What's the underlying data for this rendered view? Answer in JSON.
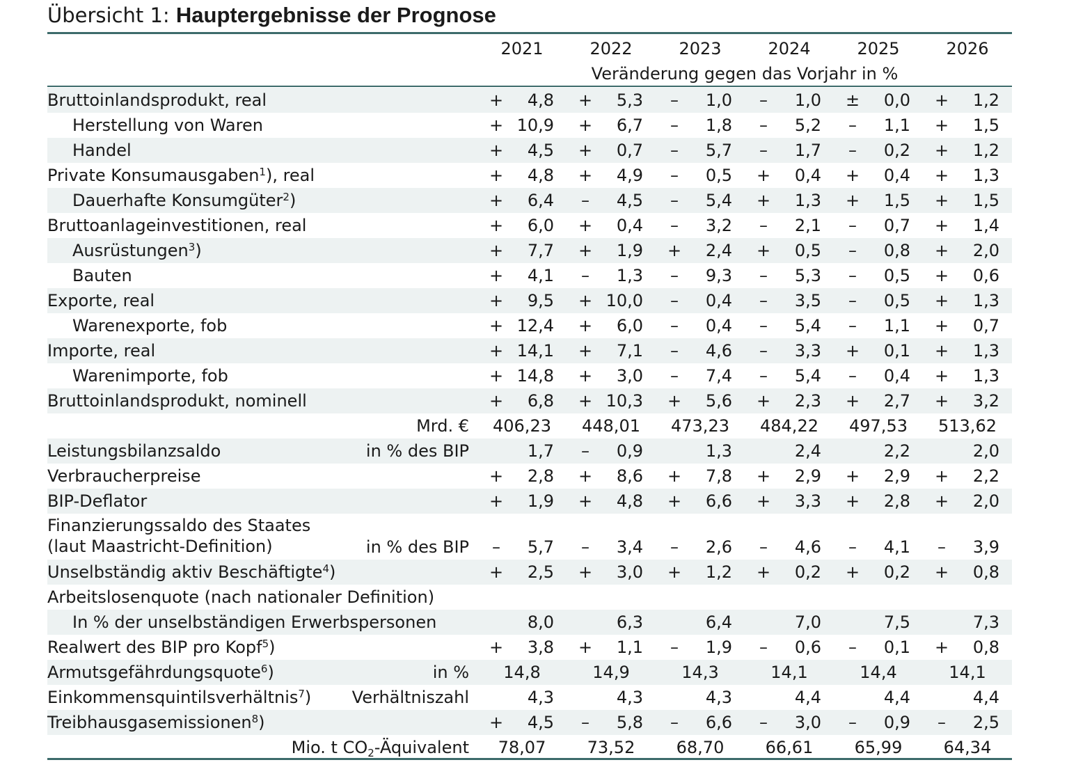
{
  "title": {
    "prefix": "Übersicht 1: ",
    "main": "Hauptergebnisse der Prognose"
  },
  "header": {
    "years": [
      "2021",
      "2022",
      "2023",
      "2024",
      "2025",
      "2026"
    ],
    "subheader": "Veränderung gegen das Vorjahr in %"
  },
  "rows": [
    {
      "label": "Bruttoinlandsprodukt, real",
      "indent": false,
      "shade": true,
      "cells": [
        [
          "+",
          "4,8"
        ],
        [
          "+",
          "5,3"
        ],
        [
          "–",
          "1,0"
        ],
        [
          "–",
          "1,0"
        ],
        [
          "±",
          "0,0"
        ],
        [
          "+",
          "1,2"
        ]
      ]
    },
    {
      "label": "Herstellung von Waren",
      "indent": true,
      "shade": false,
      "cells": [
        [
          "+",
          "10,9"
        ],
        [
          "+",
          "6,7"
        ],
        [
          "–",
          "1,8"
        ],
        [
          "–",
          "5,2"
        ],
        [
          "–",
          "1,1"
        ],
        [
          "+",
          "1,5"
        ]
      ]
    },
    {
      "label": "Handel",
      "indent": true,
      "shade": true,
      "cells": [
        [
          "+",
          "4,5"
        ],
        [
          "+",
          "0,7"
        ],
        [
          "–",
          "5,7"
        ],
        [
          "–",
          "1,7"
        ],
        [
          "–",
          "0,2"
        ],
        [
          "+",
          "1,2"
        ]
      ]
    },
    {
      "label": "Private Konsumausgaben",
      "sup": "1",
      "label_suffix": "), real",
      "indent": false,
      "shade": false,
      "cells": [
        [
          "+",
          "4,8"
        ],
        [
          "+",
          "4,9"
        ],
        [
          "–",
          "0,5"
        ],
        [
          "+",
          "0,4"
        ],
        [
          "+",
          "0,4"
        ],
        [
          "+",
          "1,3"
        ]
      ]
    },
    {
      "label": "Dauerhafte Konsumgüter",
      "sup": "2",
      "label_suffix": ")",
      "indent": true,
      "shade": true,
      "cells": [
        [
          "+",
          "6,4"
        ],
        [
          "–",
          "4,5"
        ],
        [
          "–",
          "5,4"
        ],
        [
          "+",
          "1,3"
        ],
        [
          "+",
          "1,5"
        ],
        [
          "+",
          "1,5"
        ]
      ]
    },
    {
      "label": "Bruttoanlageinvestitionen, real",
      "indent": false,
      "shade": false,
      "cells": [
        [
          "+",
          "6,0"
        ],
        [
          "+",
          "0,4"
        ],
        [
          "–",
          "3,2"
        ],
        [
          "–",
          "2,1"
        ],
        [
          "–",
          "0,7"
        ],
        [
          "+",
          "1,4"
        ]
      ]
    },
    {
      "label": "Ausrüstungen",
      "sup": "3",
      "label_suffix": ")",
      "indent": true,
      "shade": true,
      "cells": [
        [
          "+",
          "7,7"
        ],
        [
          "+",
          "1,9"
        ],
        [
          "+",
          "2,4"
        ],
        [
          "+",
          "0,5"
        ],
        [
          "–",
          "0,8"
        ],
        [
          "+",
          "2,0"
        ]
      ]
    },
    {
      "label": "Bauten",
      "indent": true,
      "shade": false,
      "cells": [
        [
          "+",
          "4,1"
        ],
        [
          "–",
          "1,3"
        ],
        [
          "–",
          "9,3"
        ],
        [
          "–",
          "5,3"
        ],
        [
          "–",
          "0,5"
        ],
        [
          "+",
          "0,6"
        ]
      ]
    },
    {
      "label": "Exporte, real",
      "indent": false,
      "shade": true,
      "cells": [
        [
          "+",
          "9,5"
        ],
        [
          "+",
          "10,0"
        ],
        [
          "–",
          "0,4"
        ],
        [
          "–",
          "3,5"
        ],
        [
          "–",
          "0,5"
        ],
        [
          "+",
          "1,3"
        ]
      ]
    },
    {
      "label": "Warenexporte, fob",
      "indent": true,
      "shade": false,
      "cells": [
        [
          "+",
          "12,4"
        ],
        [
          "+",
          "6,0"
        ],
        [
          "–",
          "0,4"
        ],
        [
          "–",
          "5,4"
        ],
        [
          "–",
          "1,1"
        ],
        [
          "+",
          "0,7"
        ]
      ]
    },
    {
      "label": "Importe, real",
      "indent": false,
      "shade": true,
      "cells": [
        [
          "+",
          "14,1"
        ],
        [
          "+",
          "7,1"
        ],
        [
          "–",
          "4,6"
        ],
        [
          "–",
          "3,3"
        ],
        [
          "+",
          "0,1"
        ],
        [
          "+",
          "1,3"
        ]
      ]
    },
    {
      "label": "Warenimporte, fob",
      "indent": true,
      "shade": false,
      "cells": [
        [
          "+",
          "14,8"
        ],
        [
          "+",
          "3,0"
        ],
        [
          "–",
          "7,4"
        ],
        [
          "–",
          "5,4"
        ],
        [
          "–",
          "0,4"
        ],
        [
          "+",
          "1,3"
        ]
      ]
    },
    {
      "label": "Bruttoinlandsprodukt, nominell",
      "indent": false,
      "shade": true,
      "cells": [
        [
          "+",
          "6,8"
        ],
        [
          "+",
          "10,3"
        ],
        [
          "+",
          "5,6"
        ],
        [
          "+",
          "2,3"
        ],
        [
          "+",
          "2,7"
        ],
        [
          "+",
          "3,2"
        ]
      ]
    },
    {
      "label": "",
      "unit": "Mrd. €",
      "indent": false,
      "shade": false,
      "plain": true,
      "cells": [
        [
          "",
          "406,23"
        ],
        [
          "",
          "448,01"
        ],
        [
          "",
          "473,23"
        ],
        [
          "",
          "484,22"
        ],
        [
          "",
          "497,53"
        ],
        [
          "",
          "513,62"
        ]
      ]
    },
    {
      "label": "Leistungsbilanzsaldo",
      "unit": "in % des BIP",
      "indent": false,
      "shade": true,
      "cells": [
        [
          "",
          "1,7"
        ],
        [
          "–",
          "0,9"
        ],
        [
          "",
          "1,3"
        ],
        [
          "",
          "2,4"
        ],
        [
          "",
          "2,2"
        ],
        [
          "",
          "2,0"
        ]
      ]
    },
    {
      "label": "Verbraucherpreise",
      "indent": false,
      "shade": false,
      "cells": [
        [
          "+",
          "2,8"
        ],
        [
          "+",
          "8,6"
        ],
        [
          "+",
          "7,8"
        ],
        [
          "+",
          "2,9"
        ],
        [
          "+",
          "2,9"
        ],
        [
          "+",
          "2,2"
        ]
      ]
    },
    {
      "label": "BIP-Deflator",
      "indent": false,
      "shade": true,
      "cells": [
        [
          "+",
          "1,9"
        ],
        [
          "+",
          "4,8"
        ],
        [
          "+",
          "6,6"
        ],
        [
          "+",
          "3,3"
        ],
        [
          "+",
          "2,8"
        ],
        [
          "+",
          "2,0"
        ]
      ]
    },
    {
      "label": "Finanzierungssaldo des Staates",
      "label2": "(laut Maastricht-Definition)",
      "unit": "in % des BIP",
      "indent": false,
      "shade": false,
      "tall": true,
      "cells": [
        [
          "–",
          "5,7"
        ],
        [
          "–",
          "3,4"
        ],
        [
          "–",
          "2,6"
        ],
        [
          "–",
          "4,6"
        ],
        [
          "–",
          "4,1"
        ],
        [
          "–",
          "3,9"
        ]
      ]
    },
    {
      "label": "Unselbständig aktiv Beschäftigte",
      "sup": "4",
      "label_suffix": ")",
      "indent": false,
      "shade": true,
      "cells": [
        [
          "+",
          "2,5"
        ],
        [
          "+",
          "3,0"
        ],
        [
          "+",
          "1,2"
        ],
        [
          "+",
          "0,2"
        ],
        [
          "+",
          "0,2"
        ],
        [
          "+",
          "0,8"
        ]
      ]
    },
    {
      "label": "Arbeitslosenquote (nach nationaler Definition)",
      "indent": false,
      "shade": false,
      "cells": []
    },
    {
      "label": "In % der unselbständigen Erwerbspersonen",
      "indent": true,
      "shade": true,
      "cells": [
        [
          "",
          "8,0"
        ],
        [
          "",
          "6,3"
        ],
        [
          "",
          "6,4"
        ],
        [
          "",
          "7,0"
        ],
        [
          "",
          "7,5"
        ],
        [
          "",
          "7,3"
        ]
      ]
    },
    {
      "label": "Realwert des BIP pro Kopf",
      "sup": "5",
      "label_suffix": ")",
      "indent": false,
      "shade": false,
      "cells": [
        [
          "+",
          "3,8"
        ],
        [
          "+",
          "1,1"
        ],
        [
          "–",
          "1,9"
        ],
        [
          "–",
          "0,6"
        ],
        [
          "–",
          "0,1"
        ],
        [
          "+",
          "0,8"
        ]
      ]
    },
    {
      "label": "Armutsgefährdungsquote",
      "sup": "6",
      "label_suffix": ")",
      "unit": "in %",
      "indent": false,
      "shade": true,
      "plain": true,
      "cells": [
        [
          "",
          "14,8"
        ],
        [
          "",
          "14,9"
        ],
        [
          "",
          "14,3"
        ],
        [
          "",
          "14,1"
        ],
        [
          "",
          "14,4"
        ],
        [
          "",
          "14,1"
        ]
      ]
    },
    {
      "label": "Einkommensquintilsverhältnis",
      "sup": "7",
      "label_suffix": ")",
      "unit": "Verhältniszahl",
      "indent": false,
      "shade": false,
      "cells": [
        [
          "",
          "4,3"
        ],
        [
          "",
          "4,3"
        ],
        [
          "",
          "4,3"
        ],
        [
          "",
          "4,4"
        ],
        [
          "",
          "4,4"
        ],
        [
          "",
          "4,4"
        ]
      ]
    },
    {
      "label": "Treibhausgasemissionen",
      "sup": "8",
      "label_suffix": ")",
      "indent": false,
      "shade": true,
      "cells": [
        [
          "+",
          "4,5"
        ],
        [
          "–",
          "5,8"
        ],
        [
          "–",
          "6,6"
        ],
        [
          "–",
          "3,0"
        ],
        [
          "–",
          "0,9"
        ],
        [
          "–",
          "2,5"
        ]
      ]
    },
    {
      "label": "",
      "unit": "Mio. t CO",
      "unit_sub": "2",
      "unit_suffix": "-Äquivalent",
      "indent": false,
      "shade": false,
      "plain": true,
      "cells": [
        [
          "",
          "78,07"
        ],
        [
          "",
          "73,52"
        ],
        [
          "",
          "68,70"
        ],
        [
          "",
          "66,61"
        ],
        [
          "",
          "65,99"
        ],
        [
          "",
          "64,34"
        ]
      ]
    }
  ]
}
